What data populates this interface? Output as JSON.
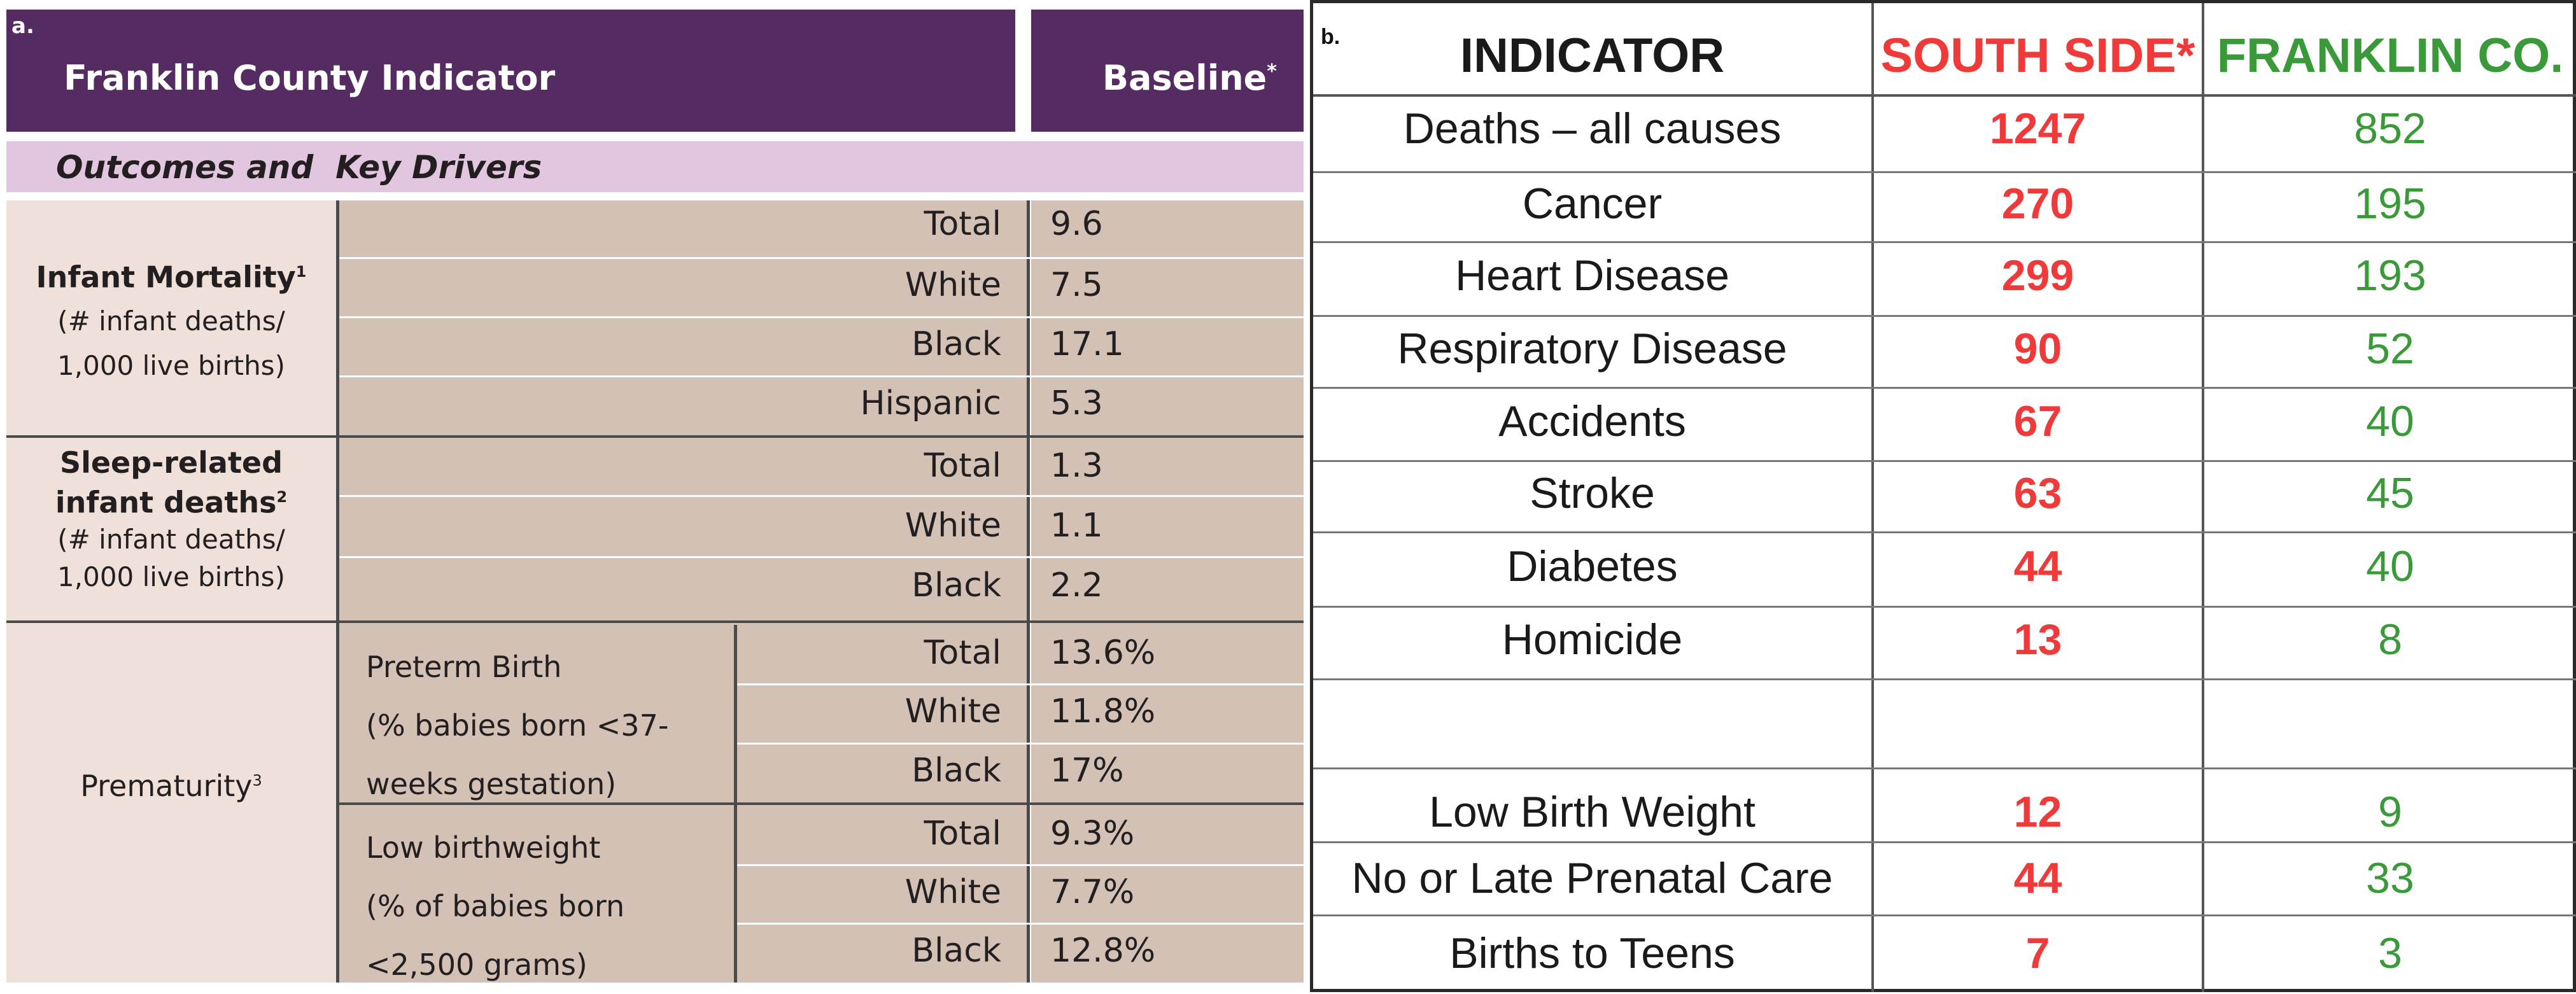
{
  "panel_a": {
    "label": "a.",
    "header_indicator": "Franklin County Indicator",
    "header_baseline": "Baseline",
    "header_baseline_mark": "*",
    "section_title": "Outcomes and  Key Drivers",
    "groups": [
      {
        "title": "Infant Mortality",
        "sup": "1",
        "sub1": "(# infant deaths/",
        "sub2": "1,000 live births)",
        "rows": [
          {
            "label": "Total",
            "value": "9.6"
          },
          {
            "label": "White",
            "value": "7.5"
          },
          {
            "label": "Black",
            "value": "17.1"
          },
          {
            "label": "Hispanic",
            "value": "5.3"
          }
        ]
      },
      {
        "title1": "Sleep-related",
        "title2": "infant deaths",
        "sup": "2",
        "sub1": "(# infant deaths/",
        "sub2": "1,000 live births)",
        "rows": [
          {
            "label": "Total",
            "value": "1.3"
          },
          {
            "label": "White",
            "value": "1.1"
          },
          {
            "label": "Black",
            "value": "2.2"
          }
        ]
      },
      {
        "title": "Prematurity",
        "sup": "3",
        "subgroups": [
          {
            "lines": [
              "Preterm Birth",
              "(% babies born <37-",
              "weeks gestation)"
            ],
            "rows": [
              {
                "label": "Total",
                "value": "13.6%"
              },
              {
                "label": "White",
                "value": "11.8%"
              },
              {
                "label": "Black",
                "value": "17%"
              }
            ]
          },
          {
            "lines": [
              "Low birthweight",
              "(% of babies born",
              "<2,500 grams)"
            ],
            "rows": [
              {
                "label": "Total",
                "value": "9.3%"
              },
              {
                "label": "White",
                "value": "7.7%"
              },
              {
                "label": "Black",
                "value": "12.8%"
              }
            ]
          }
        ]
      }
    ]
  },
  "panel_b": {
    "label": "b.",
    "headers": {
      "indicator": "INDICATOR",
      "south": "SOUTH SIDE*",
      "franklin": "FRANKLIN CO."
    },
    "rows": [
      {
        "indicator": "Deaths – all causes",
        "south": "1247",
        "franklin": "852"
      },
      {
        "indicator": "Cancer",
        "south": "270",
        "franklin": "195"
      },
      {
        "indicator": "Heart Disease",
        "south": "299",
        "franklin": "193"
      },
      {
        "indicator": "Respiratory Disease",
        "south": "90",
        "franklin": "52"
      },
      {
        "indicator": "Accidents",
        "south": "67",
        "franklin": "40"
      },
      {
        "indicator": "Stroke",
        "south": "63",
        "franklin": "45"
      },
      {
        "indicator": "Diabetes",
        "south": "44",
        "franklin": "40"
      },
      {
        "indicator": "Homicide",
        "south": "13",
        "franklin": "8"
      },
      {
        "indicator": "",
        "south": "",
        "franklin": ""
      },
      {
        "indicator": "Low Birth Weight",
        "south": "12",
        "franklin": "9"
      },
      {
        "indicator": "No or Late Prenatal Care",
        "south": "44",
        "franklin": "33"
      },
      {
        "indicator": "Births to Teens",
        "south": "7",
        "franklin": "3"
      }
    ],
    "colors": {
      "south": "#f03a3a",
      "franklin": "#3a9a3a",
      "header": "#1a1a1a"
    }
  }
}
